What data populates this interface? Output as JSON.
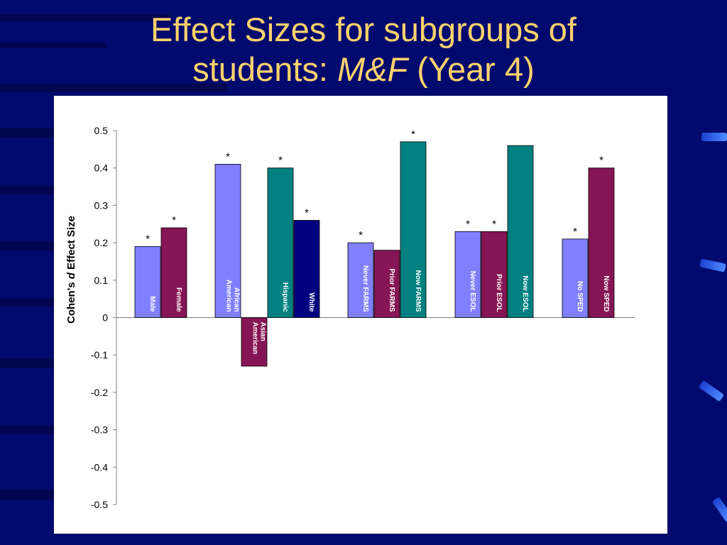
{
  "slide": {
    "title_line1": "Effect Sizes for subgroups of",
    "title_line2_prefix": "students: ",
    "title_line2_italic": "M&F",
    "title_line2_suffix": " (Year 4)"
  },
  "colors": {
    "background": "#000a6e",
    "title": "#ffd26b",
    "periwinkle": "#8080ff",
    "maroon": "#861555",
    "teal": "#008080",
    "navy": "#000080"
  },
  "chart_data": {
    "type": "bar",
    "ylabel_prefix": "Cohen's ",
    "ylabel_italic": "d",
    "ylabel_suffix": " Effect Size",
    "ylim": [
      -0.5,
      0.5
    ],
    "yticks": [
      "0.5",
      "0.4",
      "0.3",
      "0.2",
      "0.1",
      "0",
      "-0.1",
      "-0.2",
      "-0.3",
      "-0.4",
      "-0.5"
    ],
    "grid": false,
    "legend": "none",
    "significance_marker": "*",
    "bars": [
      {
        "label": [
          "Male"
        ],
        "value": 0.19,
        "color": "periwinkle",
        "significant": true,
        "group": 0
      },
      {
        "label": [
          "Female"
        ],
        "value": 0.24,
        "color": "maroon",
        "significant": true,
        "group": 0
      },
      {
        "label": [
          "African",
          "American"
        ],
        "value": 0.41,
        "color": "periwinkle",
        "significant": true,
        "group": 1
      },
      {
        "label": [
          "Asian",
          "American"
        ],
        "value": -0.13,
        "color": "maroon",
        "significant": false,
        "group": 1
      },
      {
        "label": [
          "Hispanic"
        ],
        "value": 0.4,
        "color": "teal",
        "significant": true,
        "group": 1
      },
      {
        "label": [
          "White"
        ],
        "value": 0.26,
        "color": "navy",
        "significant": true,
        "group": 1
      },
      {
        "label": [
          "Never FARMS"
        ],
        "value": 0.2,
        "color": "periwinkle",
        "significant": true,
        "group": 2
      },
      {
        "label": [
          "Prior FARMS"
        ],
        "value": 0.18,
        "color": "maroon",
        "significant": false,
        "group": 2
      },
      {
        "label": [
          "Now FARMS"
        ],
        "value": 0.47,
        "color": "teal",
        "significant": true,
        "group": 2
      },
      {
        "label": [
          "Never ESOL"
        ],
        "value": 0.23,
        "color": "periwinkle",
        "significant": true,
        "group": 3
      },
      {
        "label": [
          "Prior ESOL"
        ],
        "value": 0.23,
        "color": "maroon",
        "significant": true,
        "group": 3
      },
      {
        "label": [
          "Now ESOL"
        ],
        "value": 0.46,
        "color": "teal",
        "significant": false,
        "group": 3
      },
      {
        "label": [
          "No SPED"
        ],
        "value": 0.21,
        "color": "periwinkle",
        "significant": true,
        "group": 4
      },
      {
        "label": [
          "Now SPED"
        ],
        "value": 0.4,
        "color": "maroon",
        "significant": true,
        "group": 4
      }
    ]
  }
}
